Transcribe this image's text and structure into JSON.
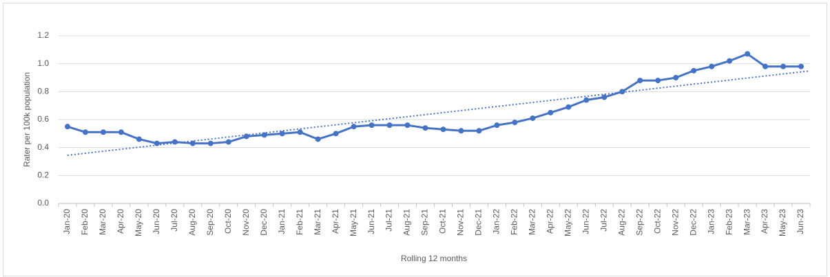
{
  "chart_data": {
    "type": "line",
    "x_label": "Rolling 12 months",
    "y_label": "Rater per 100k population",
    "categories": [
      "Jan-20",
      "Feb-20",
      "Mar-20",
      "Apr-20",
      "May-20",
      "Jun-20",
      "Jul-20",
      "Aug-20",
      "Sep-20",
      "Oct-20",
      "Nov-20",
      "Dec-20",
      "Jan-21",
      "Feb-21",
      "Mar-21",
      "Apr-21",
      "May-21",
      "Jun-21",
      "Jul-21",
      "Aug-21",
      "Sep-21",
      "Oct-21",
      "Nov-21",
      "Dec-21",
      "Jan-22",
      "Feb-22",
      "Mar-22",
      "Apr-22",
      "May-22",
      "Jun-22",
      "Jul-22",
      "Aug-22",
      "Sep-22",
      "Oct-22",
      "Nov-22",
      "Dec-22",
      "Jan-23",
      "Feb-23",
      "Mar-23",
      "Apr-23",
      "May-23",
      "Jun-23"
    ],
    "values": [
      0.55,
      0.51,
      0.51,
      0.51,
      0.46,
      0.43,
      0.44,
      0.43,
      0.43,
      0.44,
      0.48,
      0.49,
      0.5,
      0.51,
      0.46,
      0.5,
      0.55,
      0.56,
      0.56,
      0.56,
      0.54,
      0.53,
      0.52,
      0.52,
      0.56,
      0.58,
      0.61,
      0.65,
      0.69,
      0.74,
      0.76,
      0.8,
      0.88,
      0.88,
      0.9,
      0.95,
      0.98,
      1.02,
      1.07,
      0.98,
      0.98,
      0.98
    ],
    "color": "#4472c4",
    "trendline": true,
    "ylim": [
      0,
      1.2
    ],
    "yticks": [
      {
        "value": 0,
        "label": "0.0"
      },
      0.2,
      0.4,
      0.6,
      0.8,
      {
        "value": 1,
        "label": "1.0"
      },
      1.2
    ],
    "grid": true
  }
}
